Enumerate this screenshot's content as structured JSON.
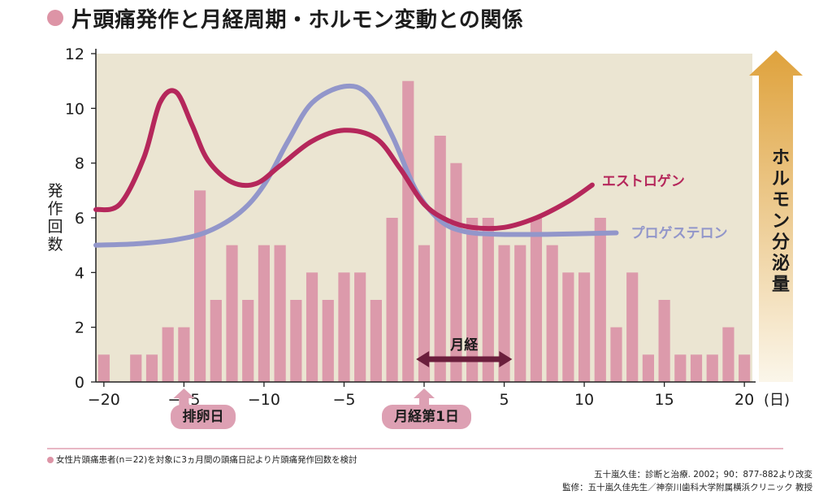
{
  "title": "片頭痛発作と月経周期・ホルモン変動との関係",
  "hormone_axis_label": "ホルモン分泌量",
  "markers": {
    "ovulation": {
      "label": "排卵日",
      "day": -15
    },
    "menstruation_day1": {
      "label": "月経第1日",
      "day": 0
    },
    "menses": {
      "label": "月経",
      "start": -0.5,
      "end": 5.5
    }
  },
  "footnote": "女性片頭痛患者(n＝22)を対象に3ヵ月間の頭痛日記より片頭痛発作回数を検討",
  "source_line1": "五十嵐久佳：診断と治療. 2002；90：877-882より改変",
  "source_line2": "監修：五十嵐久佳先生／神奈川歯科大学附属横浜クリニック 教授",
  "colors": {
    "bar": "#dc9aab",
    "plot_bg": "#ebe5d2",
    "estrogen": "#b5275b",
    "progesterone": "#9296ca",
    "menses_arrow": "#6b1e3c",
    "hormone_arrow_top": "#dfa23c",
    "hormone_arrow_bottom": "#fbf6ea",
    "badge": "#dda0b3"
  },
  "chart_data": {
    "type": "bar",
    "ylabel": "発作回数",
    "xlabel": "(日)",
    "xlim": [
      -20.5,
      20.5
    ],
    "ylim": [
      0,
      12
    ],
    "xticks": [
      -20,
      -15,
      -10,
      -5,
      0,
      5,
      10,
      15,
      20
    ],
    "xtick_labels": [
      "−20",
      "−15",
      "−10",
      "−5",
      "0",
      "5",
      "10",
      "15",
      "20"
    ],
    "yticks": [
      0,
      2,
      4,
      6,
      8,
      10,
      12
    ],
    "grid": false,
    "legend": "inline labels next to curves",
    "days": [
      -20,
      -19,
      -18,
      -17,
      -16,
      -15,
      -14,
      -13,
      -12,
      -11,
      -10,
      -9,
      -8,
      -7,
      -6,
      -5,
      -4,
      -3,
      -2,
      -1,
      0,
      1,
      2,
      3,
      4,
      5,
      6,
      7,
      8,
      9,
      10,
      11,
      12,
      13,
      14,
      15,
      16,
      17,
      18,
      19,
      20
    ],
    "values": [
      1,
      0,
      1,
      1,
      2,
      2,
      7,
      3,
      5,
      3,
      5,
      5,
      3,
      4,
      3,
      4,
      4,
      3,
      6,
      11,
      5,
      9,
      8,
      6,
      6,
      5,
      5,
      6,
      5,
      4,
      4,
      6,
      2,
      4,
      1,
      3,
      1,
      1,
      1,
      2,
      1
    ],
    "series": [
      {
        "name": "エストロゲン",
        "kind": "curve",
        "points": [
          [
            -20.5,
            6.3
          ],
          [
            -19,
            6.5
          ],
          [
            -17.5,
            8.2
          ],
          [
            -16.5,
            10.2
          ],
          [
            -15.5,
            10.6
          ],
          [
            -14.5,
            9.4
          ],
          [
            -13.5,
            8.1
          ],
          [
            -12,
            7.3
          ],
          [
            -10.5,
            7.25
          ],
          [
            -9,
            7.9
          ],
          [
            -7,
            8.8
          ],
          [
            -5,
            9.2
          ],
          [
            -3,
            8.9
          ],
          [
            -1.5,
            7.8
          ],
          [
            0,
            6.5
          ],
          [
            1.5,
            5.9
          ],
          [
            3,
            5.65
          ],
          [
            5,
            5.65
          ],
          [
            7,
            6.0
          ],
          [
            9,
            6.6
          ],
          [
            10.5,
            7.2
          ]
        ]
      },
      {
        "name": "プロゲステロン",
        "kind": "curve",
        "points": [
          [
            -20.5,
            5.0
          ],
          [
            -18,
            5.05
          ],
          [
            -15.5,
            5.2
          ],
          [
            -13.5,
            5.5
          ],
          [
            -11.5,
            6.2
          ],
          [
            -10,
            7.2
          ],
          [
            -8.5,
            8.8
          ],
          [
            -7,
            10.2
          ],
          [
            -5,
            10.8
          ],
          [
            -3.5,
            10.5
          ],
          [
            -2,
            9.0
          ],
          [
            -0.5,
            7.0
          ],
          [
            1,
            5.9
          ],
          [
            2.5,
            5.5
          ],
          [
            4.5,
            5.4
          ],
          [
            8,
            5.4
          ],
          [
            12,
            5.45
          ]
        ]
      }
    ]
  }
}
